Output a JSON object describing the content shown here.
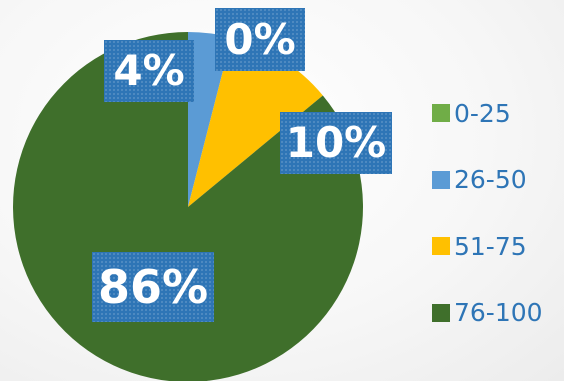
{
  "chart_data": {
    "type": "pie",
    "categories": [
      "0-25",
      "26-50",
      "51-75",
      "76-100"
    ],
    "values": [
      0,
      4,
      10,
      86
    ],
    "data_labels": [
      "0%",
      "4%",
      "10%",
      "86%"
    ],
    "colors": [
      "#70ad47",
      "#5b9bd5",
      "#ffc000",
      "#3f6f2b"
    ],
    "start_angle_deg": 0,
    "direction": "clockwise",
    "legend_position": "right"
  }
}
